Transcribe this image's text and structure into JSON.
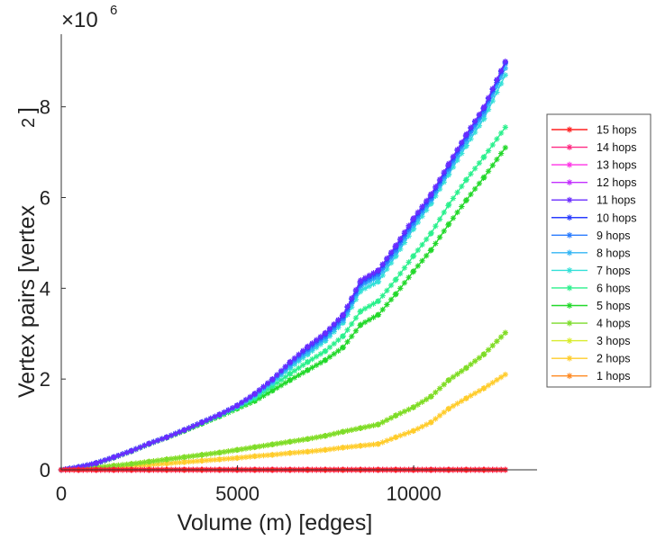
{
  "chart_data": {
    "type": "line",
    "title": "",
    "xlabel": "Volume (m) [edges]",
    "ylabel": "Vertex pairs [vertex",
    "ylabel_superscript": "2",
    "ylabel_close": "]",
    "y_multiplier": "×10",
    "y_multiplier_exponent": "6",
    "xlim": [
      0,
      13500
    ],
    "ylim": [
      0,
      9.6
    ],
    "xticks": [
      0,
      5000,
      10000
    ],
    "xtick_labels": [
      "0",
      "5000",
      "10000"
    ],
    "yticks": [
      0,
      2,
      4,
      6,
      8
    ],
    "ytick_labels": [
      "0",
      "2",
      "4",
      "6",
      "8"
    ],
    "grid": false,
    "legend_position": "right",
    "marker": "asterisk",
    "x": [
      0,
      500,
      1000,
      1500,
      2000,
      2500,
      3000,
      3500,
      4000,
      4500,
      5000,
      5500,
      6000,
      6500,
      7000,
      7500,
      8000,
      8500,
      9000,
      9500,
      10000,
      10500,
      11000,
      11500,
      12000,
      12600
    ],
    "series": [
      {
        "name": "15 hops",
        "color": "#ff2020",
        "values": [
          0,
          0,
          0,
          0,
          0,
          0,
          0,
          0,
          0,
          0,
          0,
          0,
          0,
          0,
          0,
          0,
          0,
          0,
          0,
          0,
          0,
          0,
          0,
          0,
          0,
          0
        ]
      },
      {
        "name": "14 hops",
        "color": "#ff2a82",
        "values": [
          0,
          0,
          0,
          0,
          0,
          0,
          0,
          0,
          0,
          0,
          0,
          0,
          0,
          0,
          0,
          0,
          0,
          0,
          0,
          0,
          0,
          0,
          0,
          0,
          0,
          0
        ]
      },
      {
        "name": "13 hops",
        "color": "#ff33e6",
        "values": [
          0,
          0,
          0,
          0,
          0,
          0,
          0,
          0,
          0,
          0,
          0,
          0,
          0,
          0,
          0,
          0,
          0,
          0,
          0,
          0,
          0,
          0,
          0,
          0,
          0,
          0
        ]
      },
      {
        "name": "12 hops",
        "color": "#c330ff",
        "values": [
          0,
          0,
          0,
          0,
          0,
          0,
          0,
          0,
          0,
          0,
          0,
          0,
          0,
          0,
          0,
          0,
          0,
          0,
          0,
          0,
          0,
          0,
          0,
          0,
          0,
          0
        ]
      },
      {
        "name": "11 hops",
        "color": "#6a2cff",
        "values": [
          0,
          0.06,
          0.15,
          0.28,
          0.42,
          0.58,
          0.72,
          0.88,
          1.05,
          1.22,
          1.42,
          1.68,
          2.0,
          2.38,
          2.72,
          3.02,
          3.42,
          4.18,
          4.4,
          4.95,
          5.55,
          6.08,
          6.75,
          7.4,
          8.0,
          9.0
        ]
      },
      {
        "name": "10 hops",
        "color": "#2a3cff",
        "values": [
          0,
          0.06,
          0.15,
          0.28,
          0.42,
          0.58,
          0.72,
          0.88,
          1.05,
          1.22,
          1.42,
          1.68,
          2.0,
          2.38,
          2.7,
          3.0,
          3.4,
          4.15,
          4.38,
          4.92,
          5.52,
          6.05,
          6.72,
          7.38,
          7.98,
          8.98
        ]
      },
      {
        "name": "9 hops",
        "color": "#2a7cff",
        "values": [
          0,
          0.06,
          0.15,
          0.28,
          0.42,
          0.58,
          0.72,
          0.88,
          1.05,
          1.22,
          1.42,
          1.67,
          1.98,
          2.35,
          2.66,
          2.95,
          3.35,
          4.1,
          4.32,
          4.86,
          5.46,
          6.0,
          6.66,
          7.32,
          7.92,
          8.95
        ]
      },
      {
        "name": "8 hops",
        "color": "#33b5f5",
        "values": [
          0,
          0.06,
          0.15,
          0.28,
          0.42,
          0.58,
          0.72,
          0.88,
          1.05,
          1.22,
          1.41,
          1.65,
          1.95,
          2.3,
          2.6,
          2.9,
          3.3,
          4.05,
          4.25,
          4.8,
          5.4,
          5.95,
          6.6,
          7.25,
          7.85,
          8.85
        ]
      },
      {
        "name": "7 hops",
        "color": "#33e0d8",
        "values": [
          0,
          0.06,
          0.15,
          0.28,
          0.42,
          0.58,
          0.72,
          0.88,
          1.05,
          1.21,
          1.4,
          1.63,
          1.92,
          2.25,
          2.55,
          2.85,
          3.25,
          3.95,
          4.15,
          4.72,
          5.32,
          5.88,
          6.52,
          7.15,
          7.75,
          8.7
        ]
      },
      {
        "name": "6 hops",
        "color": "#2af08c",
        "values": [
          0,
          0.06,
          0.15,
          0.28,
          0.42,
          0.58,
          0.72,
          0.88,
          1.04,
          1.2,
          1.38,
          1.58,
          1.85,
          2.12,
          2.38,
          2.62,
          2.95,
          3.5,
          3.72,
          4.2,
          4.72,
          5.22,
          5.85,
          6.4,
          6.9,
          7.55
        ]
      },
      {
        "name": "5 hops",
        "color": "#22d82a",
        "values": [
          0,
          0.06,
          0.14,
          0.27,
          0.41,
          0.57,
          0.71,
          0.86,
          1.02,
          1.18,
          1.35,
          1.52,
          1.75,
          1.98,
          2.2,
          2.42,
          2.7,
          3.2,
          3.42,
          3.88,
          4.38,
          4.85,
          5.42,
          5.95,
          6.45,
          7.1
        ]
      },
      {
        "name": "4 hops",
        "color": "#7cdc2a",
        "values": [
          0,
          0.02,
          0.05,
          0.09,
          0.13,
          0.18,
          0.23,
          0.28,
          0.33,
          0.38,
          0.44,
          0.5,
          0.56,
          0.62,
          0.68,
          0.75,
          0.84,
          0.92,
          1.0,
          1.2,
          1.38,
          1.62,
          1.98,
          2.25,
          2.55,
          3.02
        ]
      },
      {
        "name": "3 hops",
        "color": "#d8ec2a",
        "values": [
          0,
          0.02,
          0.05,
          0.09,
          0.13,
          0.18,
          0.23,
          0.28,
          0.33,
          0.38,
          0.44,
          0.5,
          0.56,
          0.62,
          0.68,
          0.75,
          0.84,
          0.92,
          1.0,
          1.2,
          1.38,
          1.62,
          1.98,
          2.25,
          2.55,
          3.02
        ]
      },
      {
        "name": "2 hops",
        "color": "#ffcc2a",
        "values": [
          0,
          0.01,
          0.03,
          0.05,
          0.08,
          0.11,
          0.14,
          0.17,
          0.2,
          0.23,
          0.26,
          0.3,
          0.33,
          0.37,
          0.4,
          0.44,
          0.49,
          0.53,
          0.57,
          0.72,
          0.86,
          1.05,
          1.35,
          1.58,
          1.8,
          2.1
        ]
      },
      {
        "name": "1 hops",
        "color": "#ff8a22",
        "values": [
          0,
          0,
          0,
          0,
          0,
          0,
          0,
          0,
          0,
          0,
          0,
          0,
          0,
          0,
          0,
          0,
          0,
          0,
          0,
          0,
          0,
          0,
          0,
          0,
          0,
          0
        ]
      }
    ]
  }
}
